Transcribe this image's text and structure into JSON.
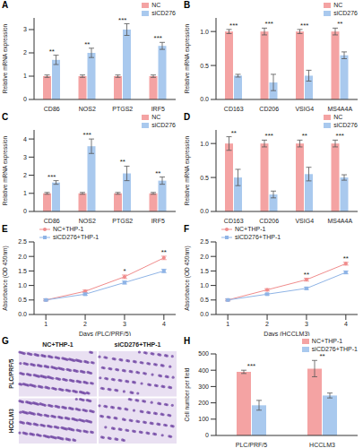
{
  "chart_data": [
    {
      "panel": "A",
      "type": "bar",
      "y_label": "Relative mRNA expression",
      "categories": [
        "CD86",
        "NOS2",
        "PTGS2",
        "IRF5"
      ],
      "series": [
        {
          "name": "NC",
          "color": "#F4A3A3",
          "values": [
            1,
            1,
            1,
            1
          ],
          "errors": [
            0.05,
            0.05,
            0.05,
            0.05
          ]
        },
        {
          "name": "siCD276",
          "color": "#A9C9EE",
          "values": [
            1.7,
            2.0,
            3.0,
            2.3
          ],
          "errors": [
            0.2,
            0.2,
            0.25,
            0.15
          ]
        }
      ],
      "significance": [
        "**",
        "**",
        "***",
        "***"
      ],
      "ylim": [
        0,
        3.5
      ],
      "yticks": [
        0,
        1,
        2,
        3
      ],
      "legend": "upper right"
    },
    {
      "panel": "B",
      "type": "bar",
      "y_label": "Relative mRNA expression",
      "categories": [
        "CD163",
        "CD206",
        "VSIG4",
        "MS4A4A"
      ],
      "series": [
        {
          "name": "NC",
          "color": "#F4A3A3",
          "values": [
            1,
            1,
            1,
            1
          ],
          "errors": [
            0.03,
            0.05,
            0.03,
            0.05
          ]
        },
        {
          "name": "siCD276",
          "color": "#A9C9EE",
          "values": [
            0.35,
            0.25,
            0.35,
            0.65
          ],
          "errors": [
            0.02,
            0.12,
            0.08,
            0.05
          ]
        }
      ],
      "significance": [
        "***",
        "***",
        "***",
        "**"
      ],
      "ylim": [
        0,
        1.2
      ],
      "yticks": [
        {
          "value": 0,
          "label": "0.0"
        },
        0.5,
        {
          "value": 1,
          "label": "1.0"
        }
      ],
      "legend": "upper right"
    },
    {
      "panel": "C",
      "type": "bar",
      "y_label": "Relative mRNA expression",
      "categories": [
        "CD86",
        "NOS2",
        "PTGS2",
        "IRF5"
      ],
      "series": [
        {
          "name": "NC",
          "color": "#F4A3A3",
          "values": [
            1,
            1,
            1,
            1
          ],
          "errors": [
            0.05,
            0.05,
            0.05,
            0.05
          ]
        },
        {
          "name": "siCD276",
          "color": "#A9C9EE",
          "values": [
            1.6,
            3.6,
            2.1,
            1.7
          ],
          "errors": [
            0.1,
            0.4,
            0.4,
            0.2
          ]
        }
      ],
      "significance": [
        "***",
        "***",
        "**",
        "**"
      ],
      "ylim": [
        0,
        4.5
      ],
      "yticks": [
        0,
        1,
        2,
        3,
        4
      ],
      "legend": "upper right"
    },
    {
      "panel": "D",
      "type": "bar",
      "y_label": "Relative mRNA expression",
      "categories": [
        "CD163",
        "CD206",
        "VSIG4",
        "MS4A4A"
      ],
      "series": [
        {
          "name": "NC",
          "color": "#F4A3A3",
          "values": [
            1,
            1,
            1,
            1
          ],
          "errors": [
            0.1,
            0.05,
            0.05,
            0.05
          ]
        },
        {
          "name": "siCD276",
          "color": "#A9C9EE",
          "values": [
            0.5,
            0.25,
            0.55,
            0.5
          ],
          "errors": [
            0.12,
            0.05,
            0.1,
            0.04
          ]
        }
      ],
      "significance": [
        "**",
        "***",
        "**",
        "***"
      ],
      "ylim": [
        0,
        1.2
      ],
      "yticks": [
        {
          "value": 0,
          "label": "0.0"
        },
        0.5,
        {
          "value": 1,
          "label": "1.0"
        }
      ],
      "legend": "upper right"
    },
    {
      "panel": "E",
      "type": "line",
      "y_label": "Absorbance (OD 450nm)",
      "x_label": "Days (PLC/PRF/5)",
      "x": [
        1,
        2,
        3,
        4
      ],
      "xlim": [
        0.7,
        4.3
      ],
      "xticks": [
        1,
        2,
        3,
        4
      ],
      "series": [
        {
          "name": "NC+THP-1",
          "color": "#F08C8C",
          "marker": "circle",
          "values": [
            0.5,
            0.8,
            1.3,
            1.95
          ],
          "errors": [
            0.03,
            0.04,
            0.06,
            0.06
          ]
        },
        {
          "name": "siCD276+THP-1",
          "color": "#8FB4E6",
          "marker": "square",
          "values": [
            0.5,
            0.7,
            1.1,
            1.5
          ],
          "errors": [
            0.03,
            0.04,
            0.05,
            0.06
          ]
        }
      ],
      "significance": [
        null,
        null,
        "*",
        "**"
      ],
      "ylim": [
        0,
        2.5
      ],
      "yticks": [
        {
          "value": 0,
          "label": "0.0"
        },
        0.5,
        {
          "value": 1,
          "label": "1.0"
        },
        1.5,
        {
          "value": 2,
          "label": "2.0"
        },
        2.5
      ],
      "legend": "upper left"
    },
    {
      "panel": "F",
      "type": "line",
      "y_label": "Absorbance (OD 450nm)",
      "x_label": "Days (HCCLM3)",
      "x": [
        1,
        2,
        3,
        4
      ],
      "xlim": [
        0.7,
        4.3
      ],
      "xticks": [
        1,
        2,
        3,
        4
      ],
      "series": [
        {
          "name": "NC+THP-1",
          "color": "#F08C8C",
          "marker": "circle",
          "values": [
            0.5,
            0.85,
            1.2,
            1.75
          ],
          "errors": [
            0.03,
            0.04,
            0.05,
            0.05
          ]
        },
        {
          "name": "siCD276+THP-1",
          "color": "#8FB4E6",
          "marker": "square",
          "values": [
            0.5,
            0.7,
            0.9,
            1.45
          ],
          "errors": [
            0.03,
            0.03,
            0.04,
            0.05
          ]
        }
      ],
      "significance": [
        null,
        null,
        "**",
        "**"
      ],
      "ylim": [
        0,
        2.5
      ],
      "yticks": [
        {
          "value": 0,
          "label": "0.0"
        },
        0.5,
        {
          "value": 1,
          "label": "1.0"
        },
        1.5,
        {
          "value": 2,
          "label": "2.0"
        },
        2.5
      ],
      "legend": "upper left"
    },
    {
      "panel": "G",
      "type": "image",
      "rows": [
        "PLC/PRF/5",
        "HCCLM3"
      ],
      "columns": [
        "NC+THP-1",
        "siCD276+THP-1"
      ]
    },
    {
      "panel": "H",
      "type": "bar",
      "y_label": "Cell number per field",
      "categories": [
        "PLC/PRF/5",
        "HCCLM3"
      ],
      "series": [
        {
          "name": "NC+THP-1",
          "color": "#F4A3A3",
          "values": [
            390,
            410
          ],
          "errors": [
            10,
            50
          ]
        },
        {
          "name": "siCD276+THP-1",
          "color": "#A9C9EE",
          "values": [
            185,
            245
          ],
          "errors": [
            30,
            15
          ]
        }
      ],
      "significance": [
        "***",
        "**"
      ],
      "ylim": [
        0,
        500
      ],
      "yticks": [
        0,
        100,
        200,
        300,
        400,
        500
      ],
      "legend": "upper right"
    }
  ]
}
